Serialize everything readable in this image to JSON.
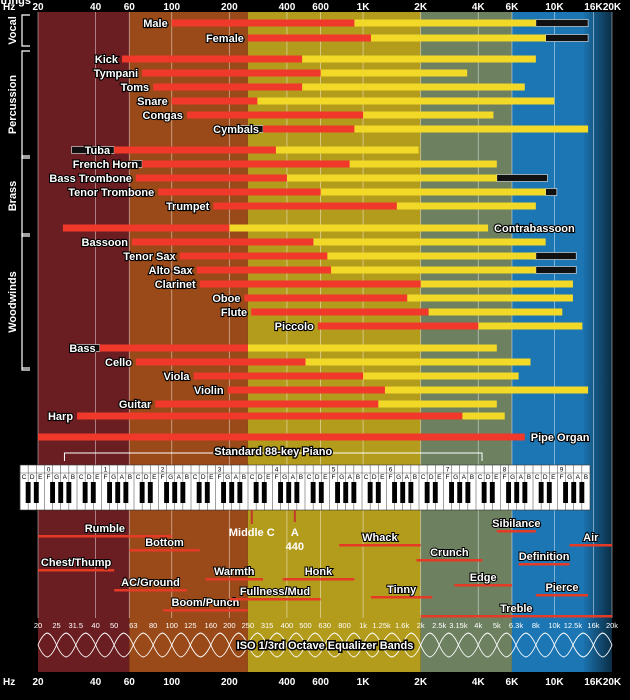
{
  "chart_data": {
    "type": "range-bar",
    "xscale": "log",
    "xlim": [
      20,
      20000
    ],
    "axis_corner_label": "Hz",
    "axis_ticks": [
      {
        "v": 20,
        "t": "20"
      },
      {
        "v": 40,
        "t": "40"
      },
      {
        "v": 60,
        "t": "60"
      },
      {
        "v": 100,
        "t": "100"
      },
      {
        "v": 200,
        "t": "200"
      },
      {
        "v": 400,
        "t": "400"
      },
      {
        "v": 600,
        "t": "600"
      },
      {
        "v": 1000,
        "t": "1K"
      },
      {
        "v": 2000,
        "t": "2K"
      },
      {
        "v": 4000,
        "t": "4K"
      },
      {
        "v": 6000,
        "t": "6K"
      },
      {
        "v": 10000,
        "t": "10K"
      },
      {
        "v": 16000,
        "t": "16K"
      },
      {
        "v": 20000,
        "t": "20K"
      }
    ],
    "bands": [
      {
        "from": 20,
        "to": 60,
        "color": "#6b1e22"
      },
      {
        "from": 60,
        "to": 250,
        "color": "#9a4a18"
      },
      {
        "from": 250,
        "to": 2000,
        "color": "#b39b1c"
      },
      {
        "from": 2000,
        "to": 6000,
        "color": "#6d8160"
      },
      {
        "from": 6000,
        "to": 20000,
        "color": "#1c76b4"
      }
    ],
    "colors": {
      "fundamental": "#f0392a",
      "harmonic": "#f2d827",
      "extended": "#0a0a0a"
    },
    "groups": [
      {
        "name": "Vocal",
        "rows": [
          0,
          1
        ]
      },
      {
        "name": "Percussion",
        "rows": [
          2,
          8
        ]
      },
      {
        "name": "Brass",
        "rows": [
          9,
          13
        ]
      },
      {
        "name": "Woodwinds",
        "rows": [
          14,
          22
        ]
      },
      {
        "name": "Strings",
        "rows": [
          23,
          28
        ]
      }
    ],
    "instruments": [
      {
        "name": "Male",
        "lo": 100,
        "mid": 900,
        "hi": 8000,
        "ext": 15000
      },
      {
        "name": "Female",
        "lo": 250,
        "mid": 1100,
        "hi": 9000,
        "ext": 15000
      },
      {
        "name": "Kick",
        "lo": 55,
        "mid": 480,
        "hi": 8000
      },
      {
        "name": "Tympani",
        "lo": 70,
        "mid": 600,
        "hi": 3500
      },
      {
        "name": "Toms",
        "lo": 80,
        "mid": 480,
        "hi": 7000
      },
      {
        "name": "Snare",
        "lo": 100,
        "mid": 280,
        "hi": 10000
      },
      {
        "name": "Congas",
        "lo": 120,
        "mid": 1000,
        "hi": 4800
      },
      {
        "name": "Cymbals",
        "elo": 230,
        "lo": 300,
        "mid": 900,
        "hi": 15000
      },
      {
        "name": "Tuba",
        "elo": 30,
        "lo": 50,
        "mid": 350,
        "hi": 1950
      },
      {
        "name": "French Horn",
        "elo": 62,
        "lo": 70,
        "mid": 850,
        "hi": 5000
      },
      {
        "name": "Bass Trombone",
        "lo": 65,
        "mid": 400,
        "hi": 5000,
        "ext": 9200
      },
      {
        "name": "Tenor Trombone",
        "lo": 85,
        "mid": 600,
        "hi": 9000,
        "ext": 10300
      },
      {
        "name": "Trumpet",
        "lo": 165,
        "mid": 1500,
        "hi": 8000
      },
      {
        "name": "Contrabassoon",
        "lo": 27,
        "mid": 200,
        "hi": 4500
      },
      {
        "name": "Bassoon",
        "lo": 62,
        "mid": 550,
        "hi": 9000
      },
      {
        "name": "Tenor Sax",
        "lo": 110,
        "mid": 650,
        "hi": 8000,
        "ext": 13000
      },
      {
        "name": "Alto Sax",
        "lo": 135,
        "mid": 680,
        "hi": 8000,
        "ext": 13000
      },
      {
        "name": "Clarinet",
        "lo": 140,
        "mid": 2000,
        "hi": 12500
      },
      {
        "name": "Oboe",
        "lo": 240,
        "mid": 1700,
        "hi": 12500
      },
      {
        "name": "Flute",
        "lo": 260,
        "mid": 2200,
        "hi": 11000
      },
      {
        "name": "Piccolo",
        "lo": 580,
        "mid": 4000,
        "hi": 14000
      },
      {
        "name": "Bass",
        "elo": 30,
        "lo": 42,
        "mid": 250,
        "hi": 5000
      },
      {
        "name": "Cello",
        "lo": 65,
        "mid": 500,
        "hi": 7500
      },
      {
        "name": "Viola",
        "lo": 130,
        "mid": 1000,
        "hi": 6500
      },
      {
        "name": "Violin",
        "lo": 196,
        "mid": 1300,
        "hi": 15000
      },
      {
        "name": "Guitar",
        "lo": 82,
        "mid": 1200,
        "hi": 5000
      },
      {
        "name": "Harp",
        "lo": 32,
        "mid": 3300,
        "hi": 5500
      },
      {
        "name": "Pipe Organ",
        "lo": 20,
        "mid": 7000,
        "hi": 7000
      }
    ],
    "piano": {
      "label": "Standard 88-key Piano",
      "lo": 27.5,
      "hi": 4186,
      "octaves": [
        "0",
        "1",
        "2",
        "3",
        "4",
        "5",
        "6",
        "7",
        "8",
        "9"
      ],
      "note_letters": "CDEFGAB"
    },
    "range_labels": [
      {
        "name": "Middle C",
        "f": 262
      },
      {
        "name": "A",
        "f": 440
      },
      {
        "name": "440",
        "f": 440
      }
    ],
    "ranges": [
      {
        "name": "Rumble",
        "lo": 20,
        "hi": 100
      },
      {
        "name": "Chest/Thump",
        "lo": 20,
        "hi": 50
      },
      {
        "name": "Bottom",
        "lo": 60,
        "hi": 140
      },
      {
        "name": "AC/Ground",
        "lo": 50,
        "hi": 120
      },
      {
        "name": "Warmth",
        "lo": 150,
        "hi": 300
      },
      {
        "name": "Boom/Punch",
        "lo": 90,
        "hi": 250
      },
      {
        "name": "Fullness/Mud",
        "lo": 200,
        "hi": 600
      },
      {
        "name": "Honk",
        "lo": 380,
        "hi": 900
      },
      {
        "name": "Whack",
        "lo": 750,
        "hi": 2000
      },
      {
        "name": "Tinny",
        "lo": 1100,
        "hi": 2300
      },
      {
        "name": "Crunch",
        "lo": 1900,
        "hi": 4200
      },
      {
        "name": "Edge",
        "lo": 3000,
        "hi": 6000
      },
      {
        "name": "Sibilance",
        "lo": 5000,
        "hi": 8000
      },
      {
        "name": "Definition",
        "lo": 6500,
        "hi": 12000
      },
      {
        "name": "Pierce",
        "lo": 8000,
        "hi": 15000
      },
      {
        "name": "Air",
        "lo": 12000,
        "hi": 20000
      },
      {
        "name": "Treble",
        "lo": 2000,
        "hi": 20000
      }
    ],
    "iso_label": "ISO 1/3rd Octave Equalizer Bands",
    "iso_bands": [
      {
        "v": 20,
        "t": "20"
      },
      {
        "v": 25,
        "t": "25"
      },
      {
        "v": 31.5,
        "t": "31.5"
      },
      {
        "v": 40,
        "t": "40"
      },
      {
        "v": 50,
        "t": "50"
      },
      {
        "v": 63,
        "t": "63"
      },
      {
        "v": 80,
        "t": "80"
      },
      {
        "v": 100,
        "t": "100"
      },
      {
        "v": 125,
        "t": "125"
      },
      {
        "v": 160,
        "t": "160"
      },
      {
        "v": 200,
        "t": "200"
      },
      {
        "v": 250,
        "t": "250"
      },
      {
        "v": 315,
        "t": "315"
      },
      {
        "v": 400,
        "t": "400"
      },
      {
        "v": 500,
        "t": "500"
      },
      {
        "v": 630,
        "t": "630"
      },
      {
        "v": 800,
        "t": "800"
      },
      {
        "v": 1000,
        "t": "1k"
      },
      {
        "v": 1250,
        "t": "1.25k"
      },
      {
        "v": 1600,
        "t": "1.6k"
      },
      {
        "v": 2000,
        "t": "2k"
      },
      {
        "v": 2500,
        "t": "2.5k"
      },
      {
        "v": 3150,
        "t": "3.15k"
      },
      {
        "v": 4000,
        "t": "4k"
      },
      {
        "v": 5000,
        "t": "5k"
      },
      {
        "v": 6300,
        "t": "6.3k"
      },
      {
        "v": 8000,
        "t": "8k"
      },
      {
        "v": 10000,
        "t": "10k"
      },
      {
        "v": 12500,
        "t": "12.5k"
      },
      {
        "v": 16000,
        "t": "16k"
      },
      {
        "v": 20000,
        "t": "20k"
      }
    ]
  }
}
